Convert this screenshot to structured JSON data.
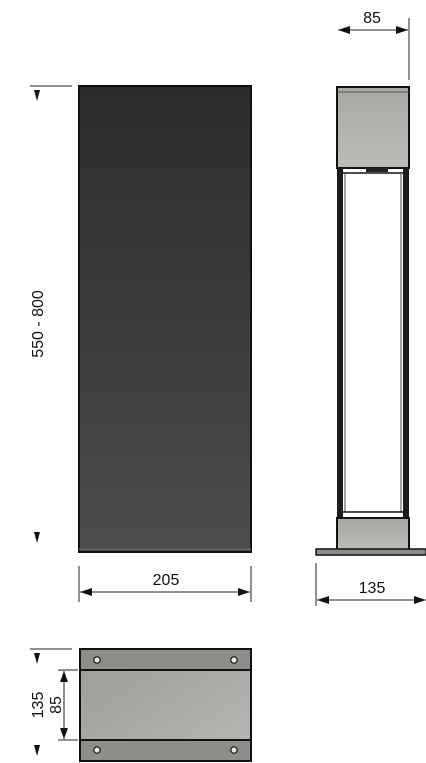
{
  "dimensions": {
    "side_depth_top": "85",
    "height_range": "550 - 800",
    "front_width": "205",
    "side_base_width": "135",
    "plan_depth_outer": "135",
    "plan_depth_inner": "85"
  },
  "colors": {
    "front_dark": "#2e2d2b",
    "front_light": "#4b4a48",
    "steel_light": "#b4b2ae",
    "steel_mid": "#8d8b87",
    "outline": "#111111",
    "dimension_line": "#222222"
  }
}
